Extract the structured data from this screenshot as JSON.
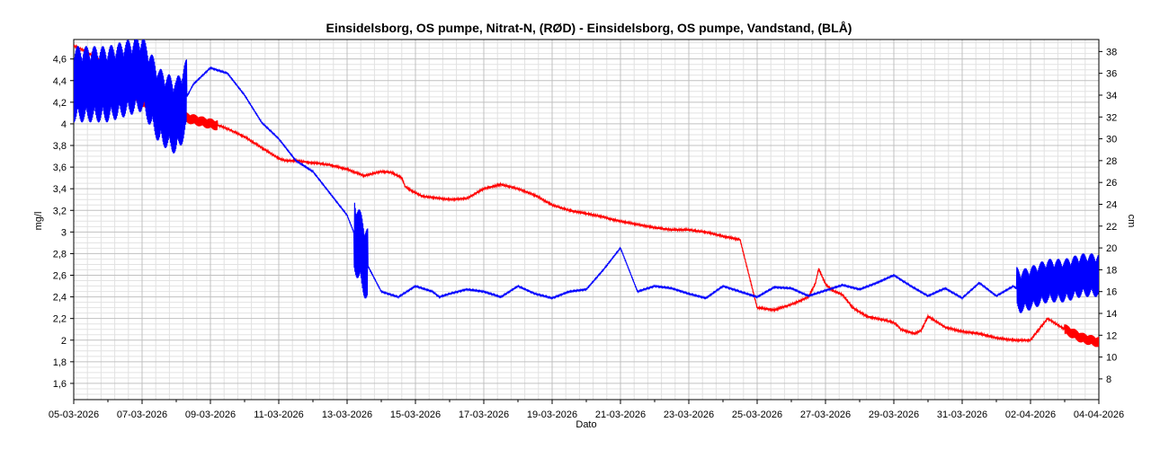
{
  "chart_data": {
    "type": "line",
    "title": "Einsidelsborg, OS pumpe, Nitrat-N, (RØD)  -  Einsidelsborg, OS pumpe, Vandstand, (BLÅ)",
    "xlabel": "Dato",
    "ylabel_left": "mg/l",
    "ylabel_right": "cm",
    "xlim_days": [
      0,
      30
    ],
    "ylim_left": [
      1.45,
      4.78
    ],
    "ylim_right": [
      6.1,
      39.1
    ],
    "x_ticks": [
      "05-03-2026",
      "07-03-2026",
      "09-03-2026",
      "11-03-2026",
      "13-03-2026",
      "15-03-2026",
      "17-03-2026",
      "19-03-2026",
      "21-03-2026",
      "23-03-2026",
      "25-03-2026",
      "27-03-2026",
      "29-03-2026",
      "31-03-2026",
      "02-04-2026",
      "04-04-2026"
    ],
    "y_ticks_left": [
      "1,6",
      "1,8",
      "2",
      "2,2",
      "2,4",
      "2,6",
      "2,8",
      "3",
      "3,2",
      "3,4",
      "3,6",
      "3,8",
      "4",
      "4,2",
      "4,4",
      "4,6"
    ],
    "y_ticks_right": [
      "8",
      "10",
      "12",
      "14",
      "16",
      "18",
      "20",
      "22",
      "24",
      "26",
      "28",
      "30",
      "32",
      "34",
      "36",
      "38"
    ],
    "grid": true,
    "colors": {
      "nitrate": "#ff0000",
      "water_level": "#0000ff",
      "grid": "#c0c0c0"
    },
    "series": [
      {
        "name": "Einsidelsborg, OS pumpe, Nitrat-N",
        "axis": "left",
        "band": {
          "x": [
            1.4,
            4.2,
            29.0,
            30.2
          ],
          "amplitude": 0.05
        },
        "x": [
          0.0,
          0.3,
          0.6,
          0.8,
          1.0,
          1.3,
          1.6,
          2.0,
          2.5,
          3.0,
          3.5,
          4.0,
          4.3,
          4.6,
          5.0,
          5.3,
          5.6,
          5.8,
          6.0,
          6.2,
          6.5,
          7.0,
          7.5,
          8.0,
          8.5,
          9.0,
          9.3,
          9.6,
          9.7,
          9.9,
          10.2,
          10.5,
          11.0,
          11.5,
          12.0,
          12.5,
          13.0,
          13.5,
          14.0,
          14.5,
          15.0,
          15.5,
          15.7,
          16.0,
          16.5,
          17.0,
          17.5,
          18.0,
          18.2,
          18.5,
          19.0,
          19.5,
          20.0,
          20.5,
          21.0,
          21.3,
          21.5,
          21.6,
          21.7,
          21.8,
          22.0,
          22.2,
          22.5,
          22.8,
          23.0,
          23.2,
          23.5,
          23.8,
          23.9,
          24.0,
          24.05,
          24.1,
          24.2,
          24.4,
          24.6,
          24.8,
          25.0,
          25.5,
          26.0,
          26.5,
          27.0,
          27.5,
          28.0,
          28.5,
          29.0,
          29.5,
          30.0
        ],
        "y": [
          4.72,
          4.68,
          4.62,
          4.58,
          4.5,
          4.4,
          4.3,
          4.2,
          4.12,
          4.08,
          4.04,
          4.0,
          3.98,
          3.94,
          3.88,
          3.82,
          3.76,
          3.72,
          3.68,
          3.66,
          3.66,
          3.64,
          3.62,
          3.58,
          3.52,
          3.56,
          3.55,
          3.5,
          3.42,
          3.38,
          3.33,
          3.32,
          3.3,
          3.31,
          3.4,
          3.44,
          3.4,
          3.34,
          3.25,
          3.2,
          3.17,
          3.14,
          3.12,
          3.1,
          3.07,
          3.04,
          3.02,
          3.02,
          3.01,
          3.0,
          2.96,
          2.93,
          2.3,
          2.28,
          2.33,
          2.37,
          2.4,
          2.46,
          2.52,
          2.66,
          2.52,
          2.46,
          2.42,
          2.3,
          2.26,
          2.22,
          2.2,
          2.18,
          2.17,
          2.16,
          2.15,
          2.14,
          2.1,
          2.08,
          2.06,
          2.09,
          2.22,
          2.12,
          2.08,
          2.06,
          2.02,
          2.0,
          2.0,
          2.2,
          2.1,
          2.02,
          1.98
        ]
      },
      {
        "name": "Einsidelsborg, OS pumpe, Vandstand",
        "axis": "right",
        "band": {
          "x": [
            0.0,
            3.3,
            8.2,
            8.6
          ],
          "amplitude": 3.5,
          "x2": [
            27.6,
            30.0
          ],
          "amplitude2": 2.0
        },
        "x": [
          0.0,
          0.5,
          1.0,
          1.5,
          2.0,
          2.5,
          3.0,
          3.5,
          4.0,
          4.5,
          5.0,
          5.5,
          6.0,
          6.5,
          7.0,
          7.5,
          8.0,
          8.5,
          9.0,
          9.5,
          10.0,
          10.5,
          10.7,
          11.0,
          11.5,
          12.0,
          12.5,
          13.0,
          13.5,
          14.0,
          14.5,
          15.0,
          15.5,
          16.0,
          16.5,
          17.0,
          17.5,
          18.0,
          18.5,
          19.0,
          19.5,
          20.0,
          20.5,
          21.0,
          21.5,
          22.0,
          22.5,
          23.0,
          23.5,
          24.0,
          24.5,
          25.0,
          25.5,
          26.0,
          26.5,
          27.0,
          27.5,
          27.7,
          28.0,
          28.5,
          29.0,
          29.5,
          30.0
        ],
        "y": [
          35.0,
          35.0,
          35.0,
          35.5,
          36.0,
          33.0,
          32.0,
          35.0,
          36.5,
          36.0,
          34.0,
          31.5,
          30.0,
          28.0,
          27.0,
          25.0,
          23.0,
          19.0,
          16.0,
          15.5,
          16.5,
          16.0,
          15.5,
          15.8,
          16.2,
          16.0,
          15.5,
          16.5,
          15.8,
          15.4,
          16.0,
          16.2,
          18.0,
          20.0,
          16.0,
          16.5,
          16.3,
          15.8,
          15.4,
          16.5,
          16.0,
          15.5,
          16.4,
          16.3,
          15.6,
          16.1,
          16.6,
          16.2,
          16.8,
          17.5,
          16.5,
          15.6,
          16.3,
          15.4,
          16.8,
          15.6,
          16.5,
          16.0,
          16.3,
          17.0,
          17.0,
          17.5,
          17.5
        ]
      }
    ]
  }
}
